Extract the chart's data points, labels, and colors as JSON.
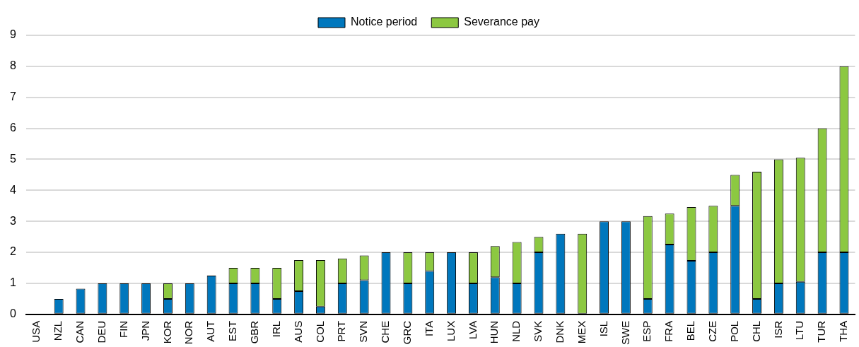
{
  "chart_data": {
    "type": "bar",
    "stacked": true,
    "categories": [
      "USA",
      "NZL",
      "CAN",
      "DEU",
      "FIN",
      "JPN",
      "KOR",
      "NOR",
      "AUT",
      "EST",
      "GBR",
      "IRL",
      "AUS",
      "COL",
      "PRT",
      "SVN",
      "CHE",
      "GRC",
      "ITA",
      "LUX",
      "LVA",
      "HUN",
      "NLD",
      "SVK",
      "DNK",
      "MEX",
      "ISL",
      "SWE",
      "ESP",
      "FRA",
      "BEL",
      "CZE",
      "POL",
      "CHL",
      "ISR",
      "LTU",
      "TUR",
      "THA"
    ],
    "series": [
      {
        "name": "Notice period",
        "color": "#0077bd",
        "values": [
          0,
          0.5,
          0.83,
          1,
          1,
          1,
          0.5,
          1,
          1.25,
          1,
          1,
          0.5,
          0.75,
          0.25,
          1,
          1.1,
          2,
          1,
          1.4,
          2,
          1,
          1.2,
          1,
          2,
          2.6,
          0,
          3,
          3,
          0.5,
          2.25,
          1.73,
          2,
          3.5,
          0.5,
          1,
          1.05,
          2,
          2
        ]
      },
      {
        "name": "Severance pay",
        "color": "#8cc841",
        "values": [
          0,
          0,
          0,
          0,
          0,
          0,
          0.5,
          0,
          0,
          0.5,
          0.5,
          1,
          1,
          1.5,
          0.8,
          0.8,
          0,
          1,
          0.6,
          0,
          1,
          1,
          1.33,
          0.5,
          0,
          2.6,
          0,
          0,
          2.67,
          1,
          1.73,
          1.5,
          1,
          4.1,
          4,
          4,
          4,
          6
        ]
      }
    ],
    "ylim": [
      0,
      9
    ],
    "yticks": [
      0,
      1,
      2,
      3,
      4,
      5,
      6,
      7,
      8,
      9
    ],
    "grid": "y",
    "legend": "top"
  }
}
